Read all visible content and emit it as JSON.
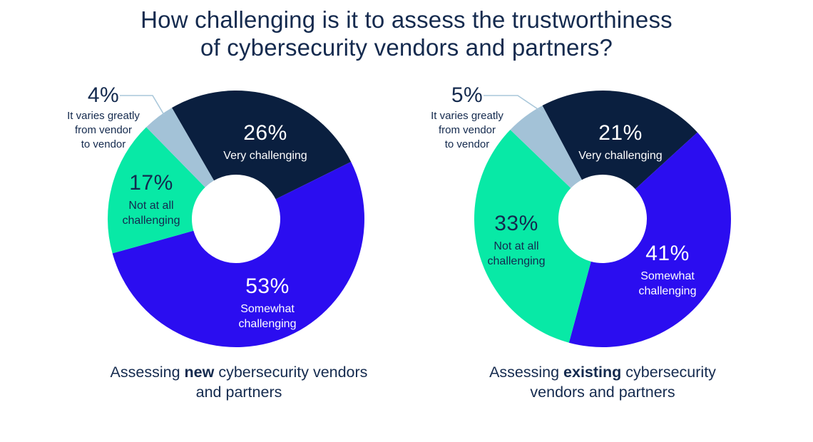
{
  "title": {
    "line1": "How challenging is it to assess the trustworthiness",
    "line2": "of cybersecurity vendors and partners?"
  },
  "colors": {
    "very_challenging": "#0A1F3F",
    "somewhat_challenging": "#2B0DF0",
    "not_at_all_challenging": "#08E9A6",
    "varies_by_vendor": "#A3C2D7",
    "text_navy": "#142A4E",
    "callout_line": "#A9C7DA",
    "background": "#FFFFFF"
  },
  "chart_data": [
    {
      "type": "pie",
      "variant": "donut",
      "title": "Assessing new cybersecurity vendors and partners",
      "caption": {
        "prefix": "Assessing ",
        "bold": "new",
        "suffix": " cybersecurity vendors and partners"
      },
      "start_angle_deg": -30,
      "hole_ratio": 0.344,
      "legend_position": "on-slices",
      "slices": [
        {
          "label": "Very challenging",
          "label_lines": [
            "Very challenging"
          ],
          "pct": "26%",
          "value": 26,
          "color": "#0A1F3F",
          "text_style": "light"
        },
        {
          "label": "Somewhat challenging",
          "label_lines": [
            "Somewhat",
            "challenging"
          ],
          "pct": "53%",
          "value": 53,
          "color": "#2B0DF0",
          "text_style": "light"
        },
        {
          "label": "Not at all challenging",
          "label_lines": [
            "Not at all",
            "challenging"
          ],
          "pct": "17%",
          "value": 17,
          "color": "#08E9A6",
          "text_style": "dark"
        },
        {
          "label": "It varies greatly from vendor to vendor",
          "label_lines": [
            "It varies greatly",
            "from vendor",
            "to vendor"
          ],
          "pct": "4%",
          "value": 4,
          "color": "#A3C2D7",
          "text_style": "outside-callout"
        }
      ]
    },
    {
      "type": "pie",
      "variant": "donut",
      "title": "Assessing existing cybersecurity vendors and partners",
      "caption": {
        "prefix": "Assessing ",
        "bold": "existing",
        "suffix": " cybersecurity vendors and partners"
      },
      "start_angle_deg": -28,
      "hole_ratio": 0.344,
      "legend_position": "on-slices",
      "slices": [
        {
          "label": "Very challenging",
          "label_lines": [
            "Very challenging"
          ],
          "pct": "21%",
          "value": 21,
          "color": "#0A1F3F",
          "text_style": "light"
        },
        {
          "label": "Somewhat challenging",
          "label_lines": [
            "Somewhat",
            "challenging"
          ],
          "pct": "41%",
          "value": 41,
          "color": "#2B0DF0",
          "text_style": "light"
        },
        {
          "label": "Not at all challenging",
          "label_lines": [
            "Not at all",
            "challenging"
          ],
          "pct": "33%",
          "value": 33,
          "color": "#08E9A6",
          "text_style": "dark"
        },
        {
          "label": "It varies greatly from vendor to vendor",
          "label_lines": [
            "It varies greatly",
            "from vendor",
            "to vendor"
          ],
          "pct": "5%",
          "value": 5,
          "color": "#A3C2D7",
          "text_style": "outside-callout"
        }
      ]
    }
  ]
}
